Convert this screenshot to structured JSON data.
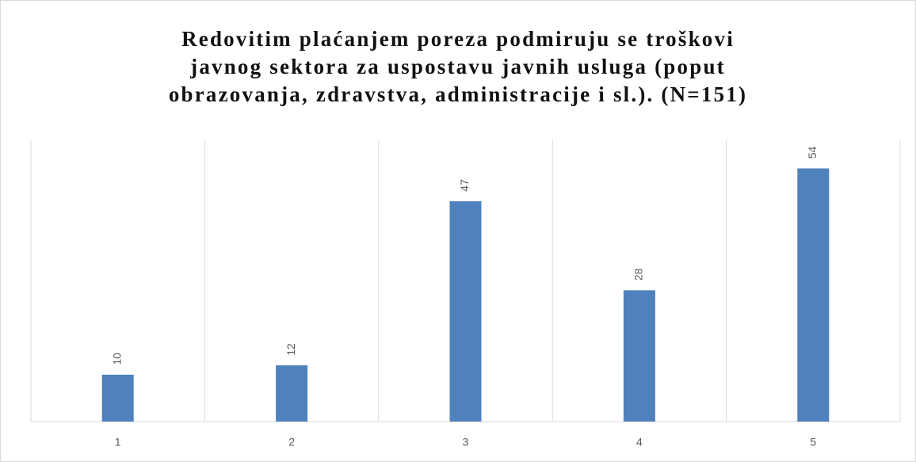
{
  "chart_data": {
    "type": "bar",
    "title": [
      "Redovitim plaćanjem poreza podmiruju se troškovi",
      "javnog sektora za uspostavu javnih usluga (poput",
      "obrazovanja, zdravstva, administracije i sl.). (N=151)"
    ],
    "categories": [
      "1",
      "2",
      "3",
      "4",
      "5"
    ],
    "values": [
      10,
      12,
      47,
      28,
      54
    ],
    "color": "#4f81bd",
    "ylim": [
      0,
      60
    ],
    "grid": true
  }
}
